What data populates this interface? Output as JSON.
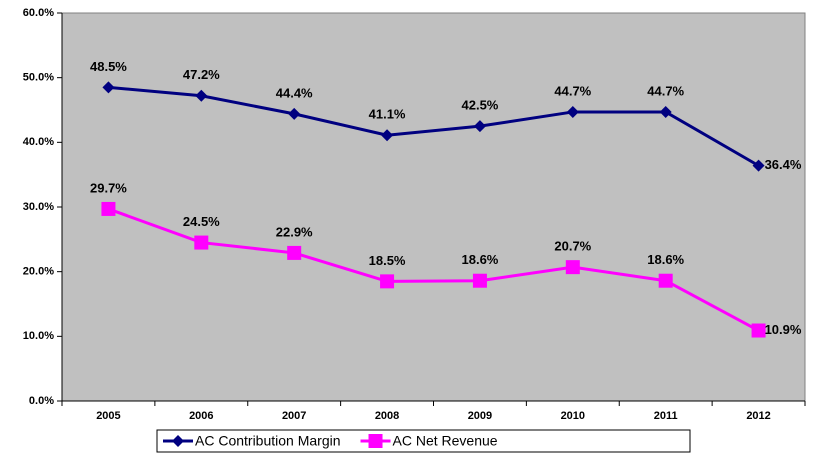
{
  "chart_data": {
    "type": "line",
    "categories": [
      "2005",
      "2006",
      "2007",
      "2008",
      "2009",
      "2010",
      "2011",
      "2012"
    ],
    "series": [
      {
        "name": "AC Contribution Margin",
        "color": "#000080",
        "marker": "diamond",
        "values": [
          48.5,
          47.2,
          44.4,
          41.1,
          42.5,
          44.7,
          44.7,
          36.4
        ],
        "value_labels": [
          "48.5%",
          "47.2%",
          "44.4%",
          "41.1%",
          "42.5%",
          "44.7%",
          "44.7%",
          "36.4%"
        ]
      },
      {
        "name": "AC Net Revenue",
        "color": "#ff00ff",
        "marker": "square",
        "values": [
          29.7,
          24.5,
          22.9,
          18.5,
          18.6,
          20.7,
          18.6,
          10.9
        ],
        "value_labels": [
          "29.7%",
          "24.5%",
          "22.9%",
          "18.5%",
          "18.6%",
          "20.7%",
          "18.6%",
          "10.9%"
        ]
      }
    ],
    "ylim": [
      0,
      60
    ],
    "yticks": [
      {
        "value": 0,
        "label": "0.0%"
      },
      {
        "value": 10,
        "label": "10.0%"
      },
      {
        "value": 20,
        "label": "20.0%"
      },
      {
        "value": 30,
        "label": "30.0%"
      },
      {
        "value": 40,
        "label": "40.0%"
      },
      {
        "value": 50,
        "label": "50.0%"
      },
      {
        "value": 60,
        "label": "60.0%"
      }
    ],
    "plot_background": "#c0c0c0",
    "legend": "bottom"
  }
}
